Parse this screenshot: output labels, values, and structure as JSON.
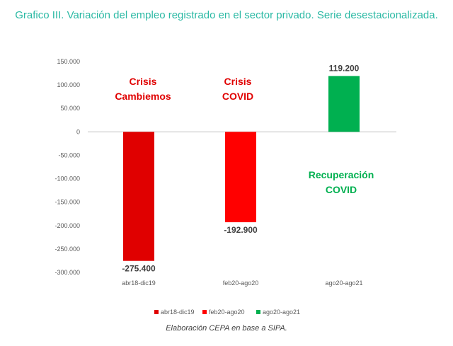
{
  "chart_data": {
    "type": "bar",
    "title": "Grafico III. Variación del empleo registrado en el sector privado. Serie desestacionalizada.",
    "categories": [
      "abr18-dic19",
      "feb20-ago20",
      "ago20-ago21"
    ],
    "values": [
      -275400,
      -192900,
      119200
    ],
    "value_labels": [
      "-275.400",
      "-192.900",
      "119.200"
    ],
    "series": [
      {
        "name": "abr18-dic19",
        "color": "#e00000"
      },
      {
        "name": "feb20-ago20",
        "color": "#ff0000"
      },
      {
        "name": "ago20-ago21",
        "color": "#00b050"
      }
    ],
    "ylim": [
      -300000,
      150000
    ],
    "yticks": [
      150000,
      100000,
      50000,
      0,
      -50000,
      -100000,
      -150000,
      -200000,
      -250000,
      -300000
    ],
    "ytick_labels": [
      "150.000",
      "100.000",
      "50.000",
      "0",
      "-50.000",
      "-100.000",
      "-150.000",
      "-200.000",
      "-250.000",
      "-300.000"
    ],
    "grid": false,
    "legend": "bottom",
    "annotations": [
      {
        "lines": [
          "Crisis",
          "Cambiemos"
        ],
        "color": "#e00000"
      },
      {
        "lines": [
          "Crisis",
          "COVID"
        ],
        "color": "#e00000"
      },
      {
        "lines": [
          "Recuperación",
          "COVID"
        ],
        "color": "#00b050"
      }
    ]
  },
  "source_note": "Elaboración CEPA en base a SIPA."
}
